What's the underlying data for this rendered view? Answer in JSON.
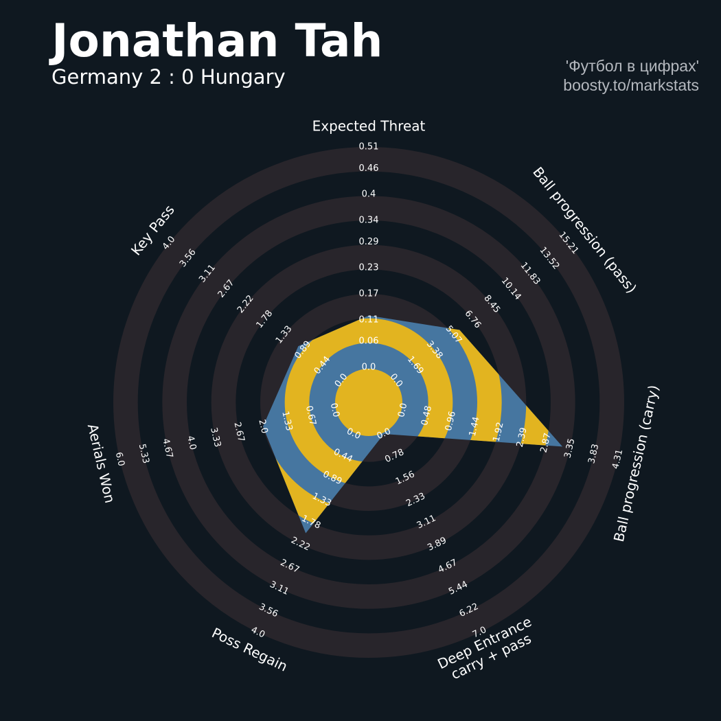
{
  "chart_data": {
    "type": "radar",
    "title": "Jonathan Tah",
    "subtitle": "Germany 2 : 0 Hungary",
    "credits": [
      "'Футбол в цифрах'",
      "boosty.to/markstats"
    ],
    "color": "#4676a0",
    "alt_color": "#e2b420",
    "ring_color": "#28252b",
    "params": [
      {
        "label": [
          "Expected Threat"
        ],
        "lim": [
          0,
          0.51
        ],
        "ticks": [
          {
            "value": 0,
            "label": "0.0"
          },
          0.06,
          0.11,
          0.17,
          0.23,
          0.29,
          0.34,
          0.4,
          0.46,
          0.51
        ]
      },
      {
        "label": [
          "Ball progression (pass)"
        ],
        "lim": [
          0,
          15.21
        ],
        "ticks": [
          {
            "value": 0,
            "label": "0.0"
          },
          1.69,
          3.38,
          5.07,
          6.76,
          8.45,
          10.14,
          11.83,
          13.52,
          15.21
        ]
      },
      {
        "label": [
          "Ball progression (carry)"
        ],
        "lim": [
          0,
          4.31
        ],
        "ticks": [
          {
            "value": 0,
            "label": "0.0"
          },
          0.48,
          0.96,
          1.44,
          1.92,
          2.39,
          2.87,
          3.35,
          3.83,
          4.31
        ]
      },
      {
        "label": [
          "Deep Entrance",
          "carry + pass"
        ],
        "lim": [
          0,
          7
        ],
        "ticks": [
          {
            "value": 0,
            "label": "0.0"
          },
          0.78,
          1.56,
          2.33,
          3.11,
          3.89,
          4.67,
          5.44,
          6.22,
          {
            "value": 7,
            "label": "7.0"
          }
        ]
      },
      {
        "label": [
          "Poss Regain"
        ],
        "lim": [
          0,
          4
        ],
        "ticks": [
          {
            "value": 0,
            "label": "0.0"
          },
          0.44,
          0.89,
          1.33,
          1.78,
          2.22,
          2.67,
          3.11,
          3.56,
          {
            "value": 4,
            "label": "4.0"
          }
        ]
      },
      {
        "label": [
          "Aerials Won"
        ],
        "lim": [
          0,
          6
        ],
        "ticks": [
          {
            "value": 0,
            "label": "0.0"
          },
          0.67,
          1.33,
          {
            "value": 2,
            "label": "2.0"
          },
          2.67,
          3.33,
          {
            "value": 4,
            "label": "4.0"
          },
          4.67,
          5.33,
          {
            "value": 6,
            "label": "6.0"
          }
        ]
      },
      {
        "label": [
          "Key Pass"
        ],
        "lim": [
          0,
          4
        ],
        "ticks": [
          {
            "value": 0,
            "label": "0.0"
          },
          0.44,
          0.89,
          1.33,
          1.78,
          2.22,
          2.67,
          3.11,
          3.56,
          {
            "value": 4,
            "label": "4.0"
          }
        ]
      }
    ],
    "values": [
      0.12,
      5.6,
      3.2,
      0,
      2.0,
      2.0,
      1.0
    ]
  }
}
